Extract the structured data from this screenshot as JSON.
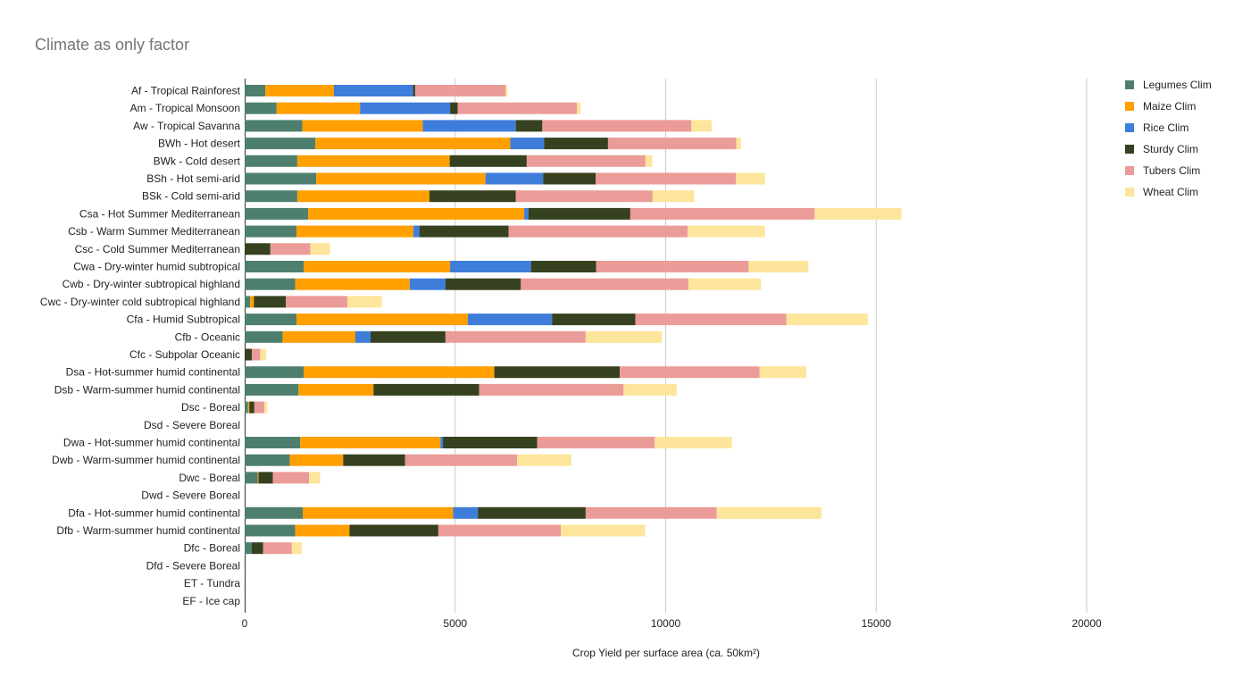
{
  "chart_data": {
    "type": "bar",
    "orientation": "horizontal",
    "stacked": true,
    "title": "Climate as only factor",
    "xlabel": "Crop Yield  per surface area (ca. 50km²)",
    "ylabel": "",
    "xlim": [
      0,
      20000
    ],
    "xticks": [
      "0",
      "5000",
      "10000",
      "15000",
      "20000"
    ],
    "grid": true,
    "legend_position": "right",
    "categories": [
      "Af - Tropical Rainforest",
      "Am - Tropical Monsoon",
      "Aw - Tropical Savanna",
      "BWh - Hot desert",
      "BWk - Cold desert",
      "BSh - Hot semi-arid",
      "BSk - Cold semi-arid",
      "Csa - Hot Summer Mediterranean",
      "Csb - Warm Summer Mediterranean",
      "Csc - Cold Summer Mediterranean",
      "Cwa - Dry-winter humid subtropical",
      "Cwb - Dry-winter subtropical highland",
      "Cwc - Dry-winter cold subtropical highland",
      "Cfa - Humid Subtropical",
      "Cfb - Oceanic",
      "Cfc - Subpolar Oceanic",
      "Dsa - Hot-summer humid continental",
      "Dsb - Warm-summer humid continental",
      "Dsc - Boreal",
      "Dsd - Severe Boreal",
      "Dwa - Hot-summer humid continental",
      "Dwb - Warm-summer humid continental",
      "Dwc - Boreal",
      "Dwd - Severe Boreal",
      "Dfa - Hot-summer humid continental",
      "Dfb - Warm-summer humid continental",
      "Dfc - Boreal",
      "Dfd - Severe Boreal",
      "ET - Tundra",
      "EF - Ice cap"
    ],
    "series": [
      {
        "name": "Legumes Clim",
        "color": "#4e7f6e",
        "values": [
          490,
          760,
          1370,
          1680,
          1250,
          1700,
          1250,
          1510,
          1230,
          0,
          1400,
          1200,
          130,
          1230,
          900,
          0,
          1400,
          1280,
          80,
          0,
          1320,
          1070,
          310,
          0,
          1380,
          1200,
          170,
          0,
          0,
          0
        ]
      },
      {
        "name": "Maize Clim",
        "color": "#ff9f00",
        "values": [
          1630,
          1980,
          2860,
          4630,
          3620,
          4020,
          3140,
          5130,
          2780,
          0,
          3480,
          2720,
          90,
          4070,
          1730,
          0,
          4530,
          1780,
          30,
          0,
          3330,
          1270,
          20,
          0,
          3570,
          1290,
          0,
          0,
          0,
          0
        ]
      },
      {
        "name": "Rice Clim",
        "color": "#3f7ddb",
        "values": [
          1880,
          2140,
          2210,
          800,
          0,
          1370,
          0,
          100,
          140,
          0,
          1920,
          850,
          0,
          2000,
          360,
          0,
          0,
          0,
          0,
          0,
          60,
          0,
          0,
          0,
          590,
          0,
          0,
          0,
          0,
          0
        ]
      },
      {
        "name": "Sturdy Clim",
        "color": "#36411f",
        "values": [
          50,
          180,
          630,
          1520,
          1830,
          1250,
          2050,
          2420,
          2120,
          610,
          1550,
          1790,
          760,
          1980,
          1780,
          170,
          2980,
          2510,
          120,
          0,
          2240,
          1470,
          340,
          0,
          2560,
          2110,
          270,
          0,
          0,
          0
        ]
      },
      {
        "name": "Tubers Clim",
        "color": "#eb9c98",
        "values": [
          2150,
          2830,
          3540,
          3050,
          2820,
          3330,
          3250,
          4380,
          4250,
          950,
          3620,
          3980,
          1460,
          3590,
          3330,
          200,
          3320,
          3430,
          240,
          0,
          2790,
          2660,
          860,
          0,
          3110,
          2910,
          680,
          0,
          0,
          0
        ]
      },
      {
        "name": "Wheat Clim",
        "color": "#fde59b",
        "values": [
          40,
          90,
          480,
          110,
          160,
          690,
          990,
          2060,
          1840,
          470,
          1420,
          1720,
          820,
          1930,
          1810,
          140,
          1110,
          1260,
          70,
          0,
          1830,
          1290,
          260,
          0,
          2490,
          2000,
          240,
          0,
          0,
          0
        ]
      }
    ]
  }
}
